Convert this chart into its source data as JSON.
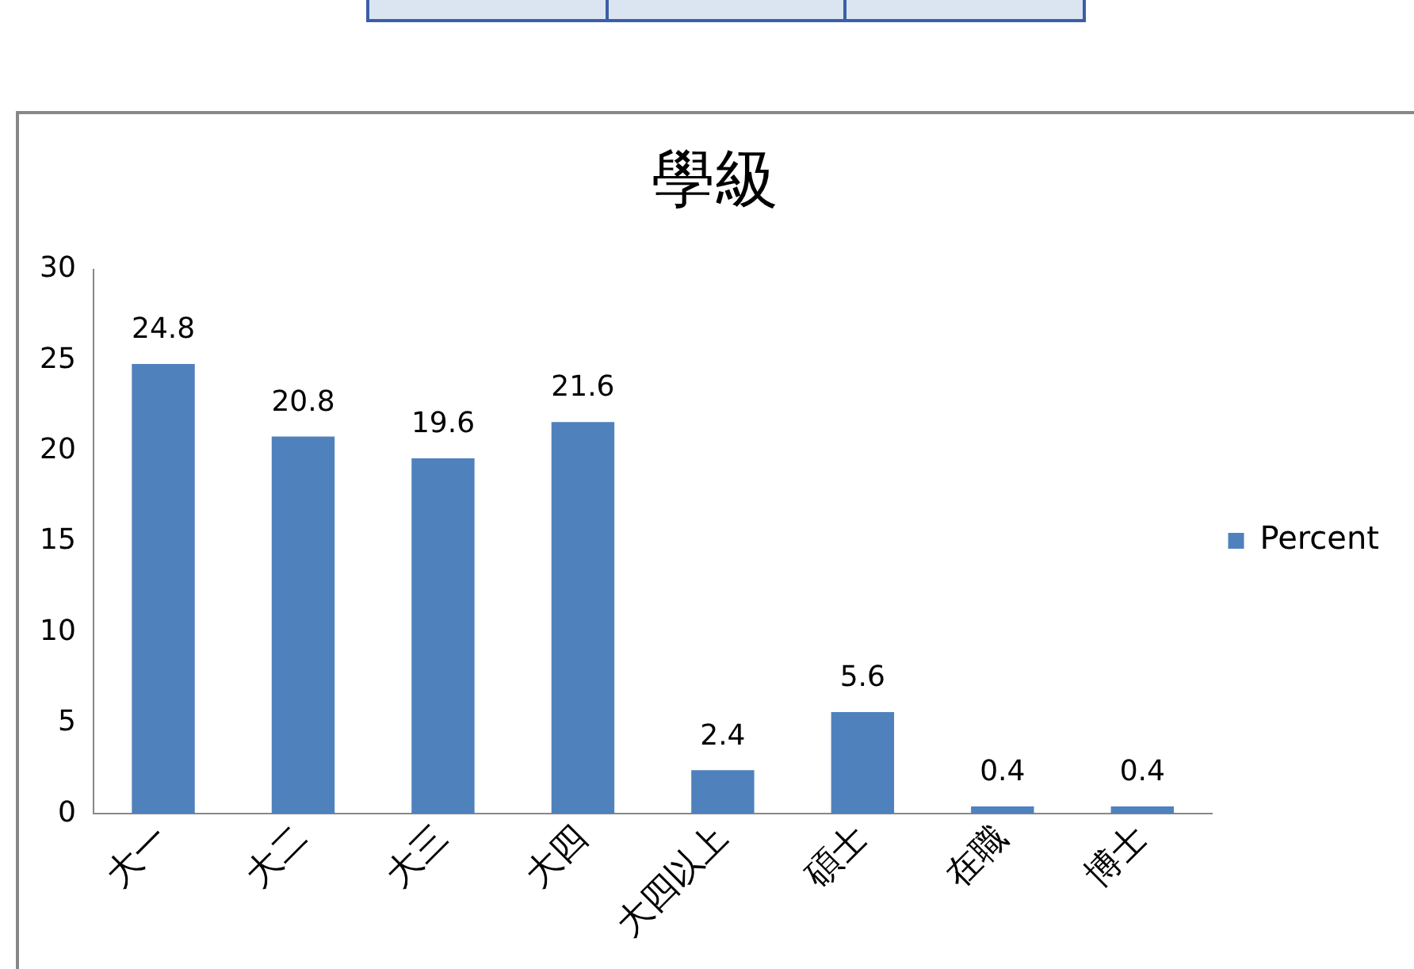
{
  "chart_data": {
    "type": "bar",
    "title": "學級",
    "categories": [
      "大一",
      "大二",
      "大三",
      "大四",
      "大四以上",
      "碩士",
      "在職",
      "博士"
    ],
    "series": [
      {
        "name": "Percent",
        "color": "#4f81bd",
        "values": [
          24.8,
          20.8,
          19.6,
          21.6,
          2.4,
          5.6,
          0.4,
          0.4
        ]
      }
    ],
    "ylim": [
      0,
      30
    ],
    "yticks": [
      0,
      5,
      10,
      15,
      20,
      25,
      30
    ],
    "grid": false,
    "legend": "right",
    "data_labels": true
  }
}
